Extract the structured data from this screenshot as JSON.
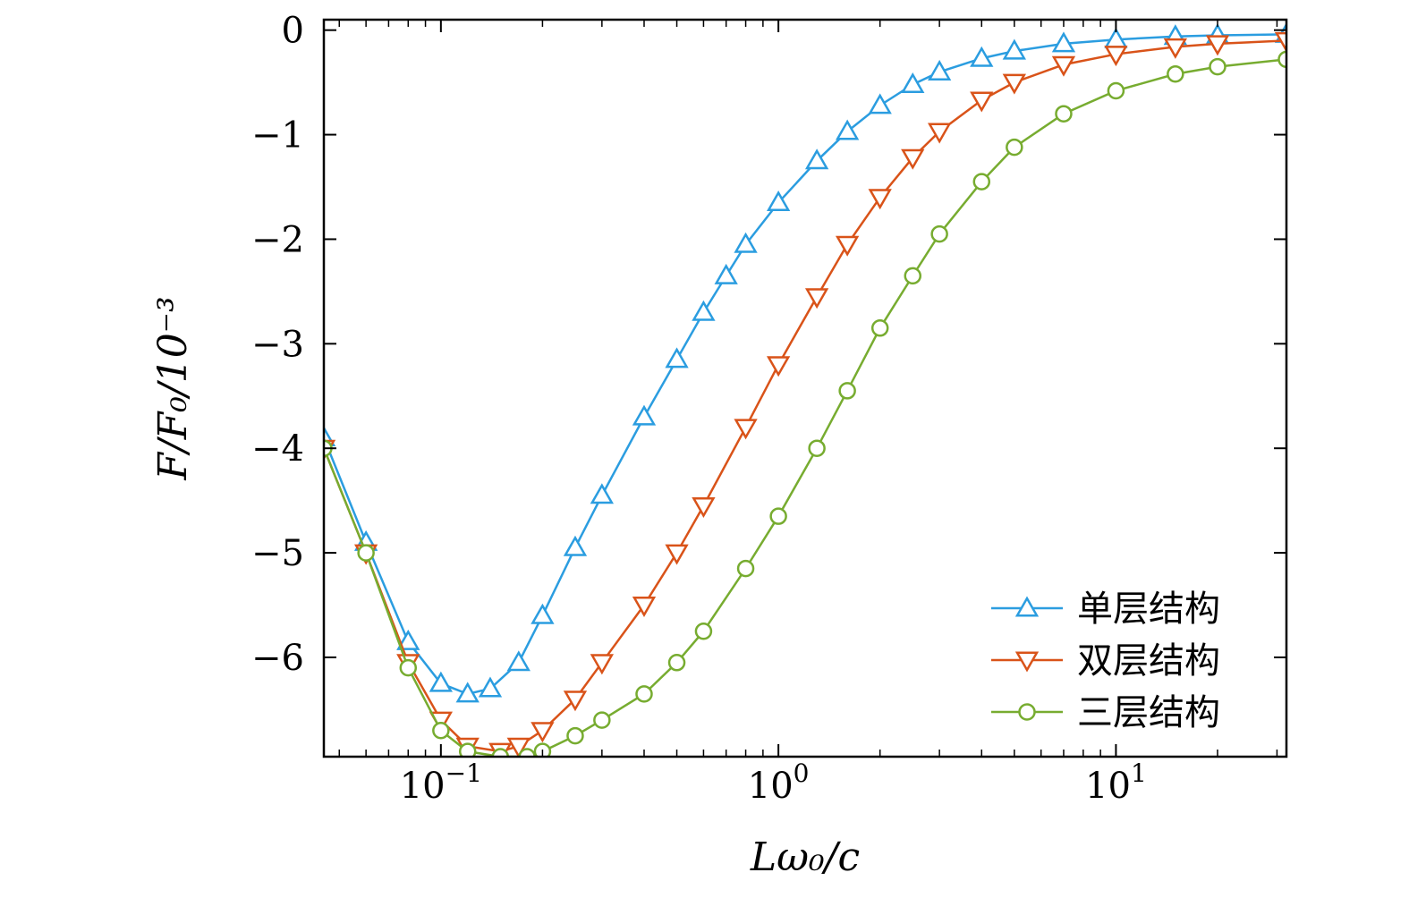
{
  "chart_data": {
    "type": "line",
    "xscale": "log",
    "xlabel": "Lω₀/c",
    "ylabel": "F/F₀/10⁻³",
    "xlim": [
      0.045,
      32
    ],
    "ylim": [
      -6.95,
      0.1
    ],
    "x_ticks": [
      {
        "value": 0.1,
        "base": "10",
        "exp": "−1"
      },
      {
        "value": 1,
        "base": "10",
        "exp": "0"
      },
      {
        "value": 10,
        "base": "10",
        "exp": "1"
      }
    ],
    "y_ticks": [
      {
        "value": 0,
        "label": "0"
      },
      {
        "value": -1,
        "label": "−1"
      },
      {
        "value": -2,
        "label": "−2"
      },
      {
        "value": -3,
        "label": "−3"
      },
      {
        "value": -4,
        "label": "−4"
      },
      {
        "value": -5,
        "label": "−5"
      },
      {
        "value": -6,
        "label": "−6"
      }
    ],
    "legend_position": "bottom-right",
    "series": [
      {
        "name": "单层结构",
        "color": "#2b9de0",
        "marker": "triangle-up",
        "x": [
          0.045,
          0.06,
          0.08,
          0.1,
          0.12,
          0.14,
          0.17,
          0.2,
          0.25,
          0.3,
          0.4,
          0.5,
          0.6,
          0.7,
          0.8,
          1.0,
          1.3,
          1.6,
          2.0,
          2.5,
          3.0,
          4.0,
          5.0,
          7.0,
          10,
          15,
          20,
          32
        ],
        "values": [
          -3.9,
          -4.9,
          -5.85,
          -6.25,
          -6.35,
          -6.3,
          -6.05,
          -5.6,
          -4.95,
          -4.45,
          -3.7,
          -3.15,
          -2.7,
          -2.35,
          -2.05,
          -1.65,
          -1.25,
          -0.97,
          -0.72,
          -0.52,
          -0.4,
          -0.27,
          -0.2,
          -0.13,
          -0.09,
          -0.06,
          -0.05,
          -0.04
        ]
      },
      {
        "name": "双层结构",
        "color": "#d95319",
        "marker": "triangle-down",
        "x": [
          0.045,
          0.06,
          0.08,
          0.1,
          0.12,
          0.15,
          0.17,
          0.2,
          0.25,
          0.3,
          0.4,
          0.5,
          0.6,
          0.8,
          1.0,
          1.3,
          1.6,
          2.0,
          2.5,
          3.0,
          4.0,
          5.0,
          7.0,
          10,
          15,
          20,
          32
        ],
        "values": [
          -4.0,
          -5.0,
          -6.05,
          -6.6,
          -6.85,
          -6.9,
          -6.85,
          -6.7,
          -6.4,
          -6.05,
          -5.5,
          -5.0,
          -4.55,
          -3.8,
          -3.2,
          -2.55,
          -2.05,
          -1.6,
          -1.22,
          -0.97,
          -0.67,
          -0.5,
          -0.33,
          -0.23,
          -0.16,
          -0.13,
          -0.1
        ]
      },
      {
        "name": "三层结构",
        "color": "#77ac30",
        "marker": "circle",
        "x": [
          0.045,
          0.06,
          0.08,
          0.1,
          0.12,
          0.15,
          0.18,
          0.2,
          0.25,
          0.3,
          0.4,
          0.5,
          0.6,
          0.8,
          1.0,
          1.3,
          1.6,
          2.0,
          2.5,
          3.0,
          4.0,
          5.0,
          7.0,
          10,
          15,
          20,
          32
        ],
        "values": [
          -4.0,
          -5.0,
          -6.1,
          -6.7,
          -6.9,
          -6.95,
          -6.95,
          -6.9,
          -6.75,
          -6.6,
          -6.35,
          -6.05,
          -5.75,
          -5.15,
          -4.65,
          -4.0,
          -3.45,
          -2.85,
          -2.35,
          -1.95,
          -1.45,
          -1.12,
          -0.8,
          -0.58,
          -0.42,
          -0.35,
          -0.28
        ]
      }
    ]
  }
}
